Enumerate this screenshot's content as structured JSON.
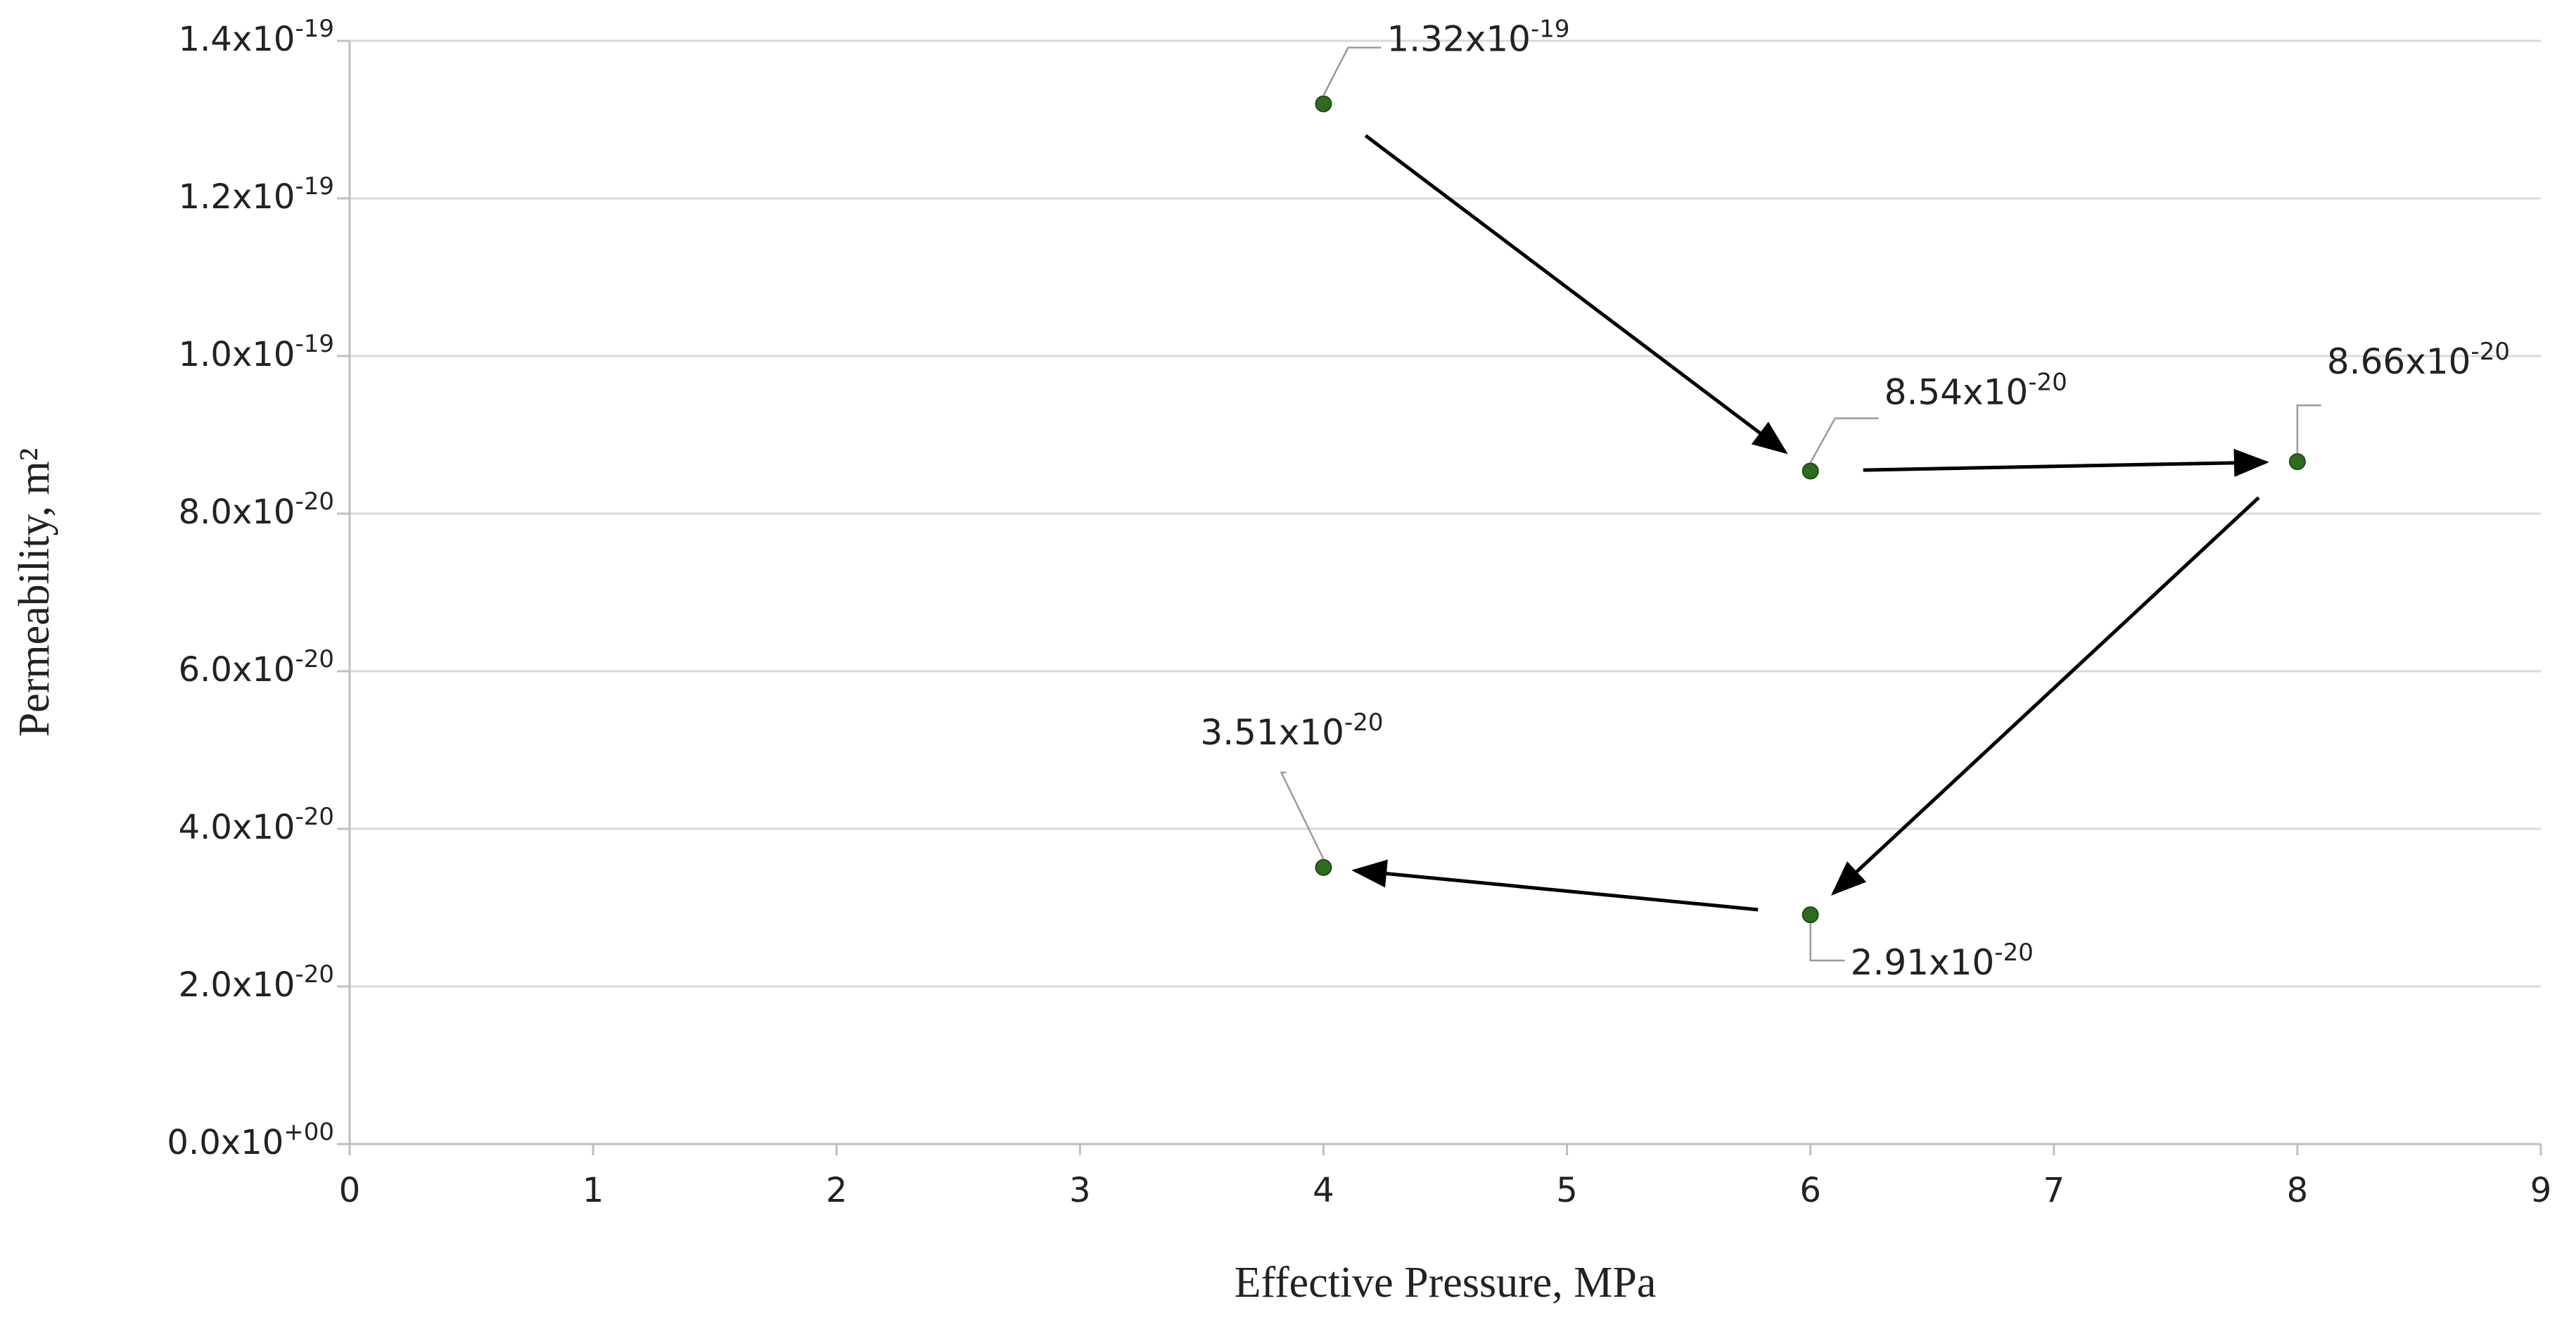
{
  "colors": {
    "marker": "#2e6b1f",
    "marker_stroke": "#1f4d14",
    "gridline": "#d9d9d9",
    "axis": "#bfbfbf",
    "arrow": "#000000",
    "leader": "#9a9a9a"
  },
  "chart_data": {
    "type": "scatter",
    "title": "",
    "xlabel": "Effective Pressure, MPa",
    "ylabel": "Permeability,  m²",
    "xlim": [
      0,
      9
    ],
    "ylim": [
      0,
      1.4e-19
    ],
    "grid": true,
    "legend": "none",
    "x_ticks": [
      "0",
      "1",
      "2",
      "3",
      "4",
      "5",
      "6",
      "7",
      "8",
      "9"
    ],
    "y_ticks": [
      {
        "value": 0,
        "base": "0.0x10",
        "exp": "+00"
      },
      {
        "value": 2e-20,
        "base": "2.0x10",
        "exp": "-20"
      },
      {
        "value": 4e-20,
        "base": "4.0x10",
        "exp": "-20"
      },
      {
        "value": 6e-20,
        "base": "6.0x10",
        "exp": "-20"
      },
      {
        "value": 8e-20,
        "base": "8.0x10",
        "exp": "-20"
      },
      {
        "value": 1e-19,
        "base": "1.0x10",
        "exp": "-19"
      },
      {
        "value": 1.2e-19,
        "base": "1.2x10",
        "exp": "-19"
      },
      {
        "value": 1.4e-19,
        "base": "1.4x10",
        "exp": "-19"
      }
    ],
    "points": [
      {
        "x": 4,
        "y": 1.32e-19,
        "base": "1.32x10",
        "exp": "-19"
      },
      {
        "x": 6,
        "y": 8.54e-20,
        "base": "8.54x10",
        "exp": "-20"
      },
      {
        "x": 8,
        "y": 8.66e-20,
        "base": "8.66x10",
        "exp": "-20"
      },
      {
        "x": 6,
        "y": 2.91e-20,
        "base": "2.91x10",
        "exp": "-20"
      },
      {
        "x": 4,
        "y": 3.51e-20,
        "base": "3.51x10",
        "exp": "-20"
      }
    ],
    "arrows": [
      {
        "from": 0,
        "to": 1
      },
      {
        "from": 1,
        "to": 2
      },
      {
        "from": 2,
        "to": 3
      },
      {
        "from": 3,
        "to": 4
      }
    ]
  }
}
